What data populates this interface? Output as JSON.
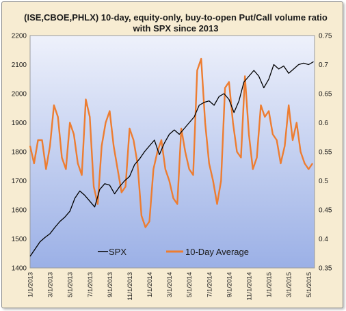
{
  "chart_data": {
    "type": "line",
    "title": [
      "(ISE,CBOE,PHLX) 10-day, equity-only, buy-to-open Put/Call volume ratio",
      "with SPX since 2013"
    ],
    "x_tick_labels": [
      "1/1/2013",
      "3/1/2013",
      "5/1/2013",
      "7/1/2013",
      "9/1/2013",
      "11/1/2013",
      "1/1/2014",
      "3/1/2014",
      "5/1/2014",
      "7/1/2014",
      "9/1/2014",
      "11/1/2014",
      "1/1/2015",
      "3/1/2015",
      "5/1/2015"
    ],
    "y_left": {
      "min": 1400,
      "max": 2200,
      "ticks": [
        1400,
        1500,
        1600,
        1700,
        1800,
        1900,
        2000,
        2100,
        2200
      ]
    },
    "y_right": {
      "min": 0.35,
      "max": 0.75,
      "ticks": [
        "0.35",
        "0.4",
        "0.45",
        "0.5",
        "0.55",
        "0.6",
        "0.65",
        "0.7",
        "0.75"
      ]
    },
    "legend_placement": "bottom-inside",
    "colors": {
      "spx": "#000000",
      "ratio": "#ed7d31",
      "plot_bg_top": "#eef1fb",
      "plot_bg_bottom": "#9bb0e6",
      "frame_bg": "#f7ecd2"
    },
    "series": [
      {
        "name": "SPX",
        "axis": "left",
        "x_month": [
          0,
          0.5,
          1,
          1.5,
          2,
          2.5,
          3,
          3.5,
          4,
          4.5,
          5,
          5.5,
          6,
          6.5,
          7,
          7.5,
          8,
          8.5,
          9,
          9.5,
          10,
          10.5,
          11,
          11.5,
          12,
          12.5,
          13,
          13.5,
          14,
          14.5,
          15,
          15.5,
          16,
          16.5,
          17,
          17.5,
          18,
          18.5,
          19,
          19.5,
          20,
          20.5,
          21,
          21.5,
          22,
          22.5,
          23,
          23.5,
          24,
          24.5,
          25,
          25.5,
          26,
          26.5,
          27,
          27.5,
          28,
          28.5
        ],
        "values": [
          1440,
          1465,
          1490,
          1505,
          1518,
          1540,
          1560,
          1575,
          1595,
          1640,
          1665,
          1650,
          1630,
          1610,
          1670,
          1690,
          1685,
          1655,
          1680,
          1700,
          1715,
          1755,
          1775,
          1800,
          1820,
          1840,
          1790,
          1830,
          1860,
          1875,
          1860,
          1880,
          1900,
          1920,
          1960,
          1970,
          1975,
          1960,
          1990,
          2000,
          1980,
          1935,
          1975,
          2040,
          2060,
          2080,
          2060,
          2020,
          2050,
          2100,
          2085,
          2095,
          2070,
          2085,
          2100,
          2105,
          2100,
          2110
        ]
      },
      {
        "name": "10-Day Average",
        "axis": "right",
        "x_month": [
          0,
          0.4,
          0.8,
          1.2,
          1.6,
          2,
          2.4,
          2.8,
          3.2,
          3.6,
          4,
          4.4,
          4.8,
          5.2,
          5.6,
          6,
          6.4,
          6.8,
          7.2,
          7.6,
          8,
          8.4,
          8.8,
          9.2,
          9.6,
          10,
          10.4,
          10.8,
          11.2,
          11.6,
          12,
          12.4,
          12.8,
          13.2,
          13.6,
          14,
          14.4,
          14.8,
          15.2,
          15.6,
          16,
          16.4,
          16.8,
          17.2,
          17.6,
          18,
          18.4,
          18.8,
          19.2,
          19.6,
          20,
          20.4,
          20.8,
          21.2,
          21.6,
          22,
          22.4,
          22.8,
          23.2,
          23.6,
          24,
          24.4,
          24.8,
          25.2,
          25.6,
          26,
          26.4,
          26.8,
          27.2,
          27.6,
          28,
          28.4
        ],
        "values": [
          0.56,
          0.53,
          0.57,
          0.57,
          0.52,
          0.56,
          0.63,
          0.61,
          0.54,
          0.52,
          0.6,
          0.58,
          0.53,
          0.51,
          0.64,
          0.61,
          0.49,
          0.46,
          0.56,
          0.6,
          0.62,
          0.56,
          0.52,
          0.48,
          0.49,
          0.59,
          0.57,
          0.53,
          0.44,
          0.42,
          0.43,
          0.52,
          0.55,
          0.57,
          0.52,
          0.5,
          0.47,
          0.46,
          0.59,
          0.55,
          0.52,
          0.51,
          0.69,
          0.71,
          0.6,
          0.53,
          0.5,
          0.46,
          0.5,
          0.66,
          0.67,
          0.6,
          0.55,
          0.54,
          0.68,
          0.58,
          0.52,
          0.54,
          0.63,
          0.61,
          0.62,
          0.58,
          0.57,
          0.53,
          0.56,
          0.63,
          0.57,
          0.6,
          0.55,
          0.53,
          0.52,
          0.53
        ]
      }
    ]
  }
}
